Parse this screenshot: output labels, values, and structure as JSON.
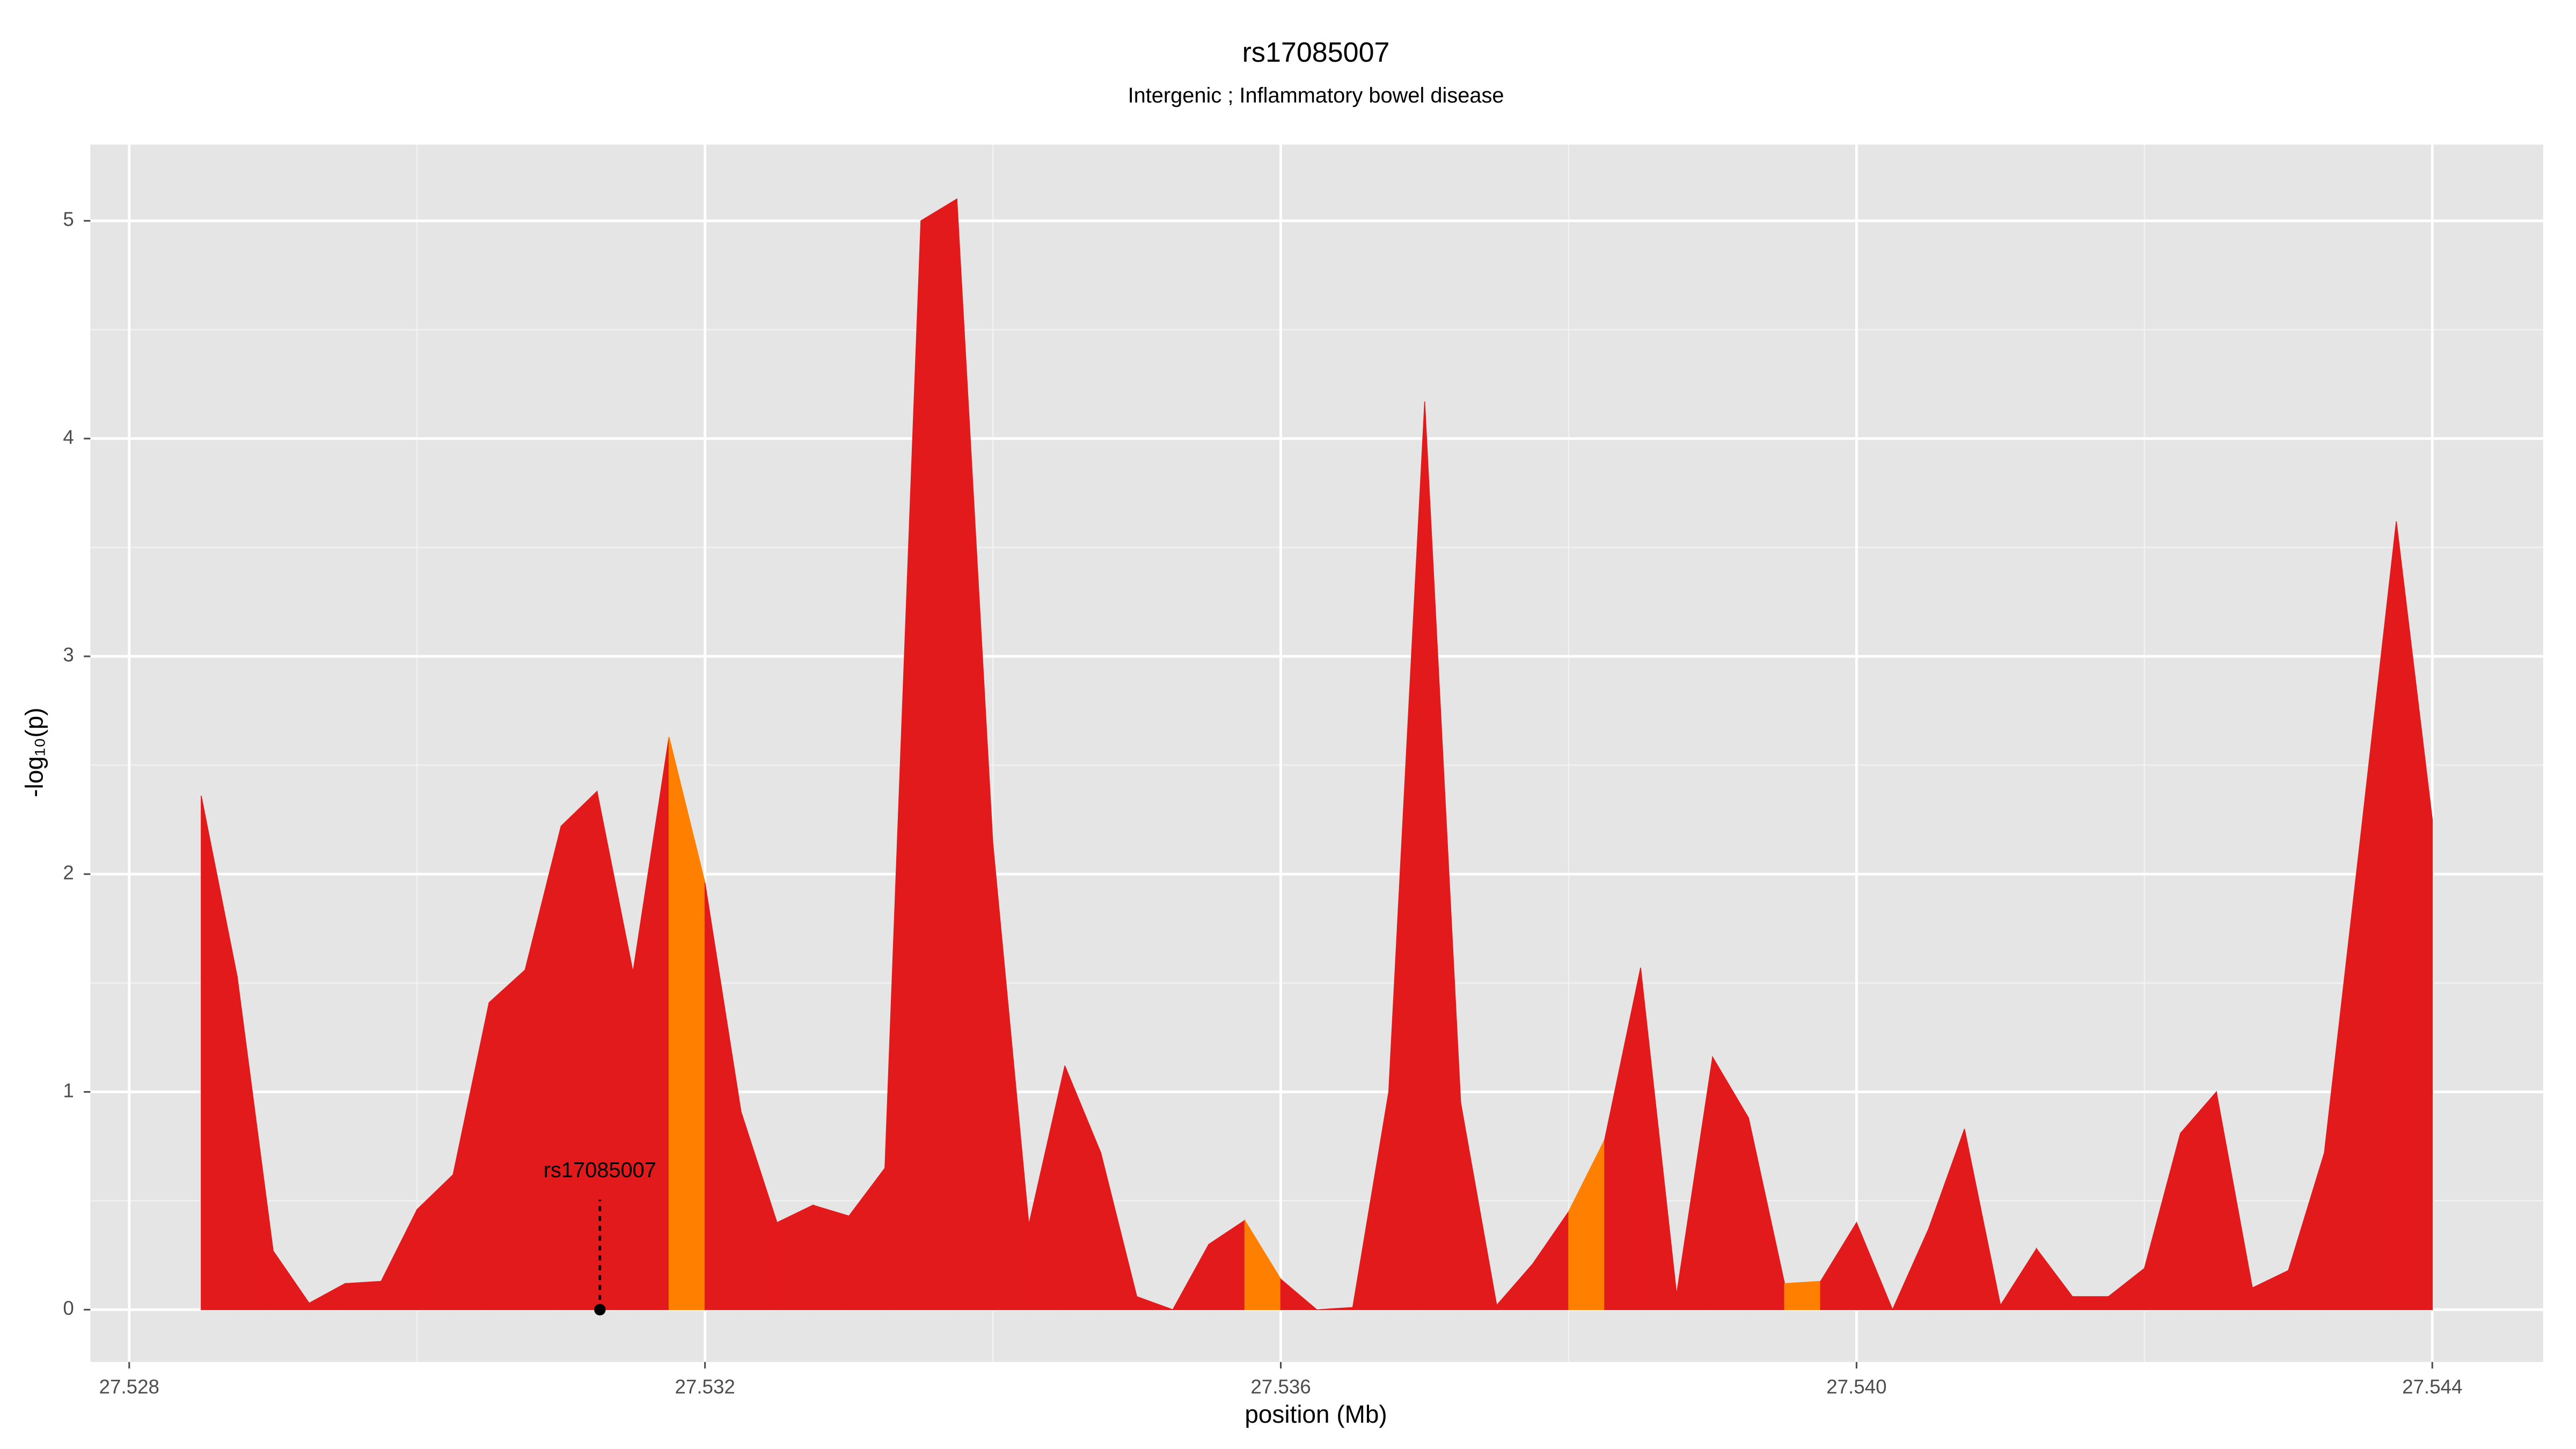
{
  "chart_data": {
    "type": "area",
    "title": "rs17085007",
    "subtitle": "Intergenic ; Inflammatory bowel disease",
    "xlabel": "position (Mb)",
    "ylabel": "-log₁₀(p)",
    "x": [
      27.5285,
      27.52875,
      27.529,
      27.52925,
      27.5295,
      27.52975,
      27.53,
      27.53025,
      27.5305,
      27.53075,
      27.531,
      27.53125,
      27.5315,
      27.53175,
      27.532,
      27.53225,
      27.5325,
      27.53275,
      27.533,
      27.53325,
      27.5335,
      27.53375,
      27.534,
      27.53425,
      27.5345,
      27.53475,
      27.535,
      27.53525,
      27.5355,
      27.53575,
      27.536,
      27.53625,
      27.5365,
      27.53675,
      27.537,
      27.53725,
      27.5375,
      27.53775,
      27.538,
      27.53825,
      27.5385,
      27.53875,
      27.539,
      27.53925,
      27.5395,
      27.53975,
      27.54,
      27.54025,
      27.5405,
      27.54075,
      27.541,
      27.54125,
      27.5415,
      27.54175,
      27.542,
      27.54225,
      27.5425,
      27.54275,
      27.543,
      27.54325,
      27.5435,
      27.54375,
      27.544
    ],
    "values": [
      2.36,
      1.53,
      0.27,
      0.03,
      0.12,
      0.13,
      0.46,
      0.62,
      1.41,
      1.56,
      2.22,
      2.38,
      1.55,
      2.63,
      1.96,
      0.91,
      0.4,
      0.48,
      0.43,
      0.65,
      5.0,
      5.1,
      2.14,
      0.39,
      1.12,
      0.72,
      0.06,
      0.0,
      0.3,
      0.41,
      0.14,
      0.0,
      0.01,
      1.0,
      4.17,
      0.95,
      0.02,
      0.21,
      0.45,
      0.78,
      1.57,
      0.07,
      1.16,
      0.88,
      0.12,
      0.13,
      0.4,
      0.0,
      0.37,
      0.83,
      0.02,
      0.28,
      0.06,
      0.06,
      0.19,
      0.81,
      1.0,
      0.1,
      0.18,
      0.72,
      2.16,
      3.62,
      2.25
    ],
    "colors": [
      "#e31a1c",
      "#e31a1c",
      "#e31a1c",
      "#e31a1c",
      "#e31a1c",
      "#e31a1c",
      "#e31a1c",
      "#e31a1c",
      "#e31a1c",
      "#e31a1c",
      "#e31a1c",
      "#e31a1c",
      "#e31a1c",
      "#ff7f00",
      "#e31a1c",
      "#e31a1c",
      "#e31a1c",
      "#e31a1c",
      "#e31a1c",
      "#e31a1c",
      "#e31a1c",
      "#e31a1c",
      "#e31a1c",
      "#e31a1c",
      "#e31a1c",
      "#e31a1c",
      "#e31a1c",
      "#e31a1c",
      "#e31a1c",
      "#ff7f00",
      "#e31a1c",
      "#e31a1c",
      "#e31a1c",
      "#e31a1c",
      "#e31a1c",
      "#e31a1c",
      "#e31a1c",
      "#e31a1c",
      "#ff7f00",
      "#e31a1c",
      "#e31a1c",
      "#e31a1c",
      "#e31a1c",
      "#e31a1c",
      "#ff7f00",
      "#e31a1c",
      "#e31a1c",
      "#e31a1c",
      "#e31a1c",
      "#e31a1c",
      "#e31a1c",
      "#e31a1c",
      "#e31a1c",
      "#e31a1c",
      "#e31a1c",
      "#e31a1c",
      "#e31a1c",
      "#e31a1c",
      "#e31a1c",
      "#e31a1c",
      "#e31a1c",
      "#e31a1c",
      "#e31a1c"
    ],
    "annotation": {
      "text": "rs17085007",
      "x": 27.53127,
      "y": 0
    },
    "xlim": [
      27.52773,
      27.54477
    ],
    "ylim": [
      -0.24,
      5.35
    ],
    "xticks": [
      27.528,
      27.532,
      27.536,
      {
        "value": 27.54,
        "label": "27.540"
      },
      27.544
    ],
    "yticks": [
      0,
      1,
      2,
      3,
      4,
      5
    ],
    "xminorticks": [
      27.53,
      27.534,
      27.538,
      27.542
    ],
    "yminorticks": [
      0.5,
      1.5,
      2.5,
      3.5,
      4.5
    ],
    "grid": true
  }
}
